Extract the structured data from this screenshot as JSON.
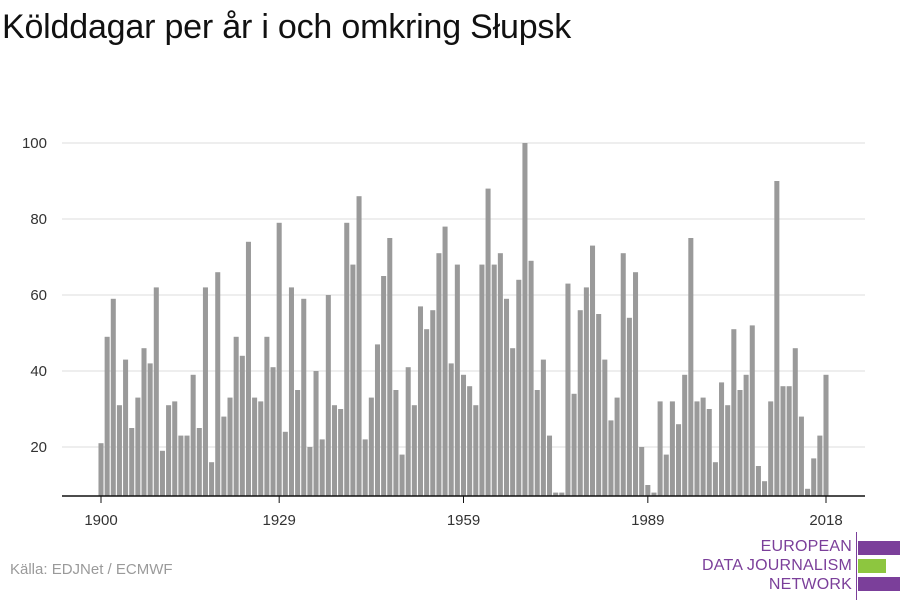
{
  "title": "Kölddagar per år i och omkring Słupsk",
  "source": "Källa: EDJNet / ECMWF",
  "logo": {
    "lines": [
      "EUROPEAN",
      "DATA JOURNALISM",
      "NETWORK"
    ],
    "colors": {
      "purple": "#7b3f9a",
      "green": "#8dc63f"
    }
  },
  "colors": {
    "bar": "#9a9a9a",
    "grid": "#dddddd",
    "axis": "#111111"
  },
  "chart_data": {
    "type": "bar",
    "x_tick_labels": [
      "1900",
      "1929",
      "1959",
      "1989",
      "2018"
    ],
    "y_tick_labels": [
      "20",
      "40",
      "60",
      "80",
      "100"
    ],
    "ylim": [
      7,
      100
    ],
    "grid": true,
    "x": [
      1900,
      1901,
      1902,
      1903,
      1904,
      1905,
      1906,
      1907,
      1908,
      1909,
      1910,
      1911,
      1912,
      1913,
      1914,
      1915,
      1916,
      1917,
      1918,
      1919,
      1920,
      1921,
      1922,
      1923,
      1924,
      1925,
      1926,
      1927,
      1928,
      1929,
      1930,
      1931,
      1932,
      1933,
      1934,
      1935,
      1936,
      1937,
      1938,
      1939,
      1940,
      1941,
      1942,
      1943,
      1944,
      1945,
      1946,
      1947,
      1948,
      1949,
      1950,
      1951,
      1952,
      1953,
      1954,
      1955,
      1956,
      1957,
      1958,
      1959,
      1960,
      1961,
      1962,
      1963,
      1964,
      1965,
      1966,
      1967,
      1968,
      1969,
      1970,
      1971,
      1972,
      1973,
      1974,
      1975,
      1976,
      1977,
      1978,
      1979,
      1980,
      1981,
      1982,
      1983,
      1984,
      1985,
      1986,
      1987,
      1988,
      1989,
      1990,
      1991,
      1992,
      1993,
      1994,
      1995,
      1996,
      1997,
      1998,
      1999,
      2000,
      2001,
      2002,
      2003,
      2004,
      2005,
      2006,
      2007,
      2008,
      2009,
      2010,
      2011,
      2012,
      2013,
      2014,
      2015,
      2016,
      2017,
      2018
    ],
    "values": [
      21,
      49,
      59,
      31,
      43,
      25,
      33,
      46,
      42,
      62,
      19,
      31,
      32,
      23,
      23,
      39,
      25,
      62,
      16,
      66,
      28,
      33,
      49,
      44,
      74,
      33,
      32,
      49,
      41,
      79,
      24,
      62,
      35,
      59,
      20,
      40,
      22,
      60,
      31,
      30,
      79,
      68,
      86,
      22,
      33,
      47,
      65,
      75,
      35,
      18,
      41,
      31,
      57,
      51,
      56,
      71,
      78,
      42,
      68,
      39,
      36,
      31,
      68,
      88,
      68,
      71,
      59,
      46,
      64,
      100,
      69,
      35,
      43,
      23,
      8,
      8,
      63,
      34,
      56,
      62,
      73,
      55,
      43,
      27,
      33,
      71,
      54,
      66,
      20,
      10,
      8,
      32,
      18,
      32,
      26,
      39,
      75,
      32,
      33,
      30,
      16,
      37,
      31,
      51,
      35,
      39,
      52,
      15,
      11,
      32,
      90,
      36,
      36,
      46,
      28,
      9,
      17,
      23,
      39
    ]
  }
}
